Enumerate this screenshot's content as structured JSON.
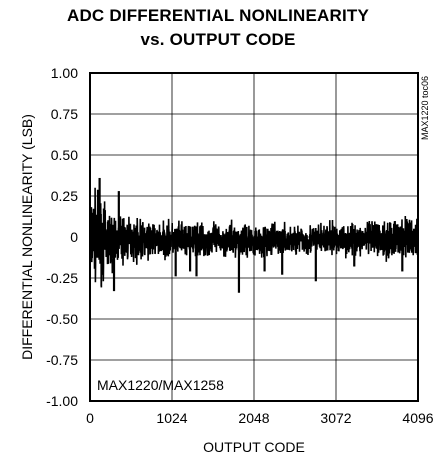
{
  "chart_data": {
    "type": "line",
    "title": "ADC DIFFERENTIAL NONLINEARITY",
    "subtitle": "vs. OUTPUT CODE",
    "xlabel": "OUTPUT CODE",
    "ylabel": "DIFFERENTIAL NONLINEARITY (LSB)",
    "xlim": [
      0,
      4096
    ],
    "ylim": [
      -1.0,
      1.0
    ],
    "x_ticks": [
      "0",
      "1024",
      "2048",
      "3072",
      "4096"
    ],
    "y_ticks": [
      "1.00",
      "0.75",
      "0.50",
      "0.25",
      "0",
      "-0.25",
      "-0.50",
      "-0.75",
      "-1.00"
    ],
    "grid": true,
    "annotation": "MAX1220/MAX1258",
    "figure_code": "MAX1220 toc06",
    "series": [
      {
        "color": "#000000",
        "envelope": {
          "x": [
            0,
            50,
            100,
            200,
            300,
            500,
            700,
            1024,
            1500,
            2048,
            2500,
            3072,
            3500,
            3800,
            4096
          ],
          "upper": [
            0.22,
            0.35,
            0.3,
            0.22,
            0.18,
            0.14,
            0.12,
            0.11,
            0.1,
            0.1,
            0.09,
            0.1,
            0.11,
            0.14,
            0.16
          ],
          "lower": [
            -0.26,
            -0.3,
            -0.33,
            -0.28,
            -0.22,
            -0.18,
            -0.16,
            -0.15,
            -0.14,
            -0.14,
            -0.13,
            -0.13,
            -0.14,
            -0.16,
            -0.17
          ]
        },
        "outliers": [
          {
            "x": 120,
            "y": 0.36
          },
          {
            "x": 300,
            "y": -0.33
          },
          {
            "x": 360,
            "y": 0.28
          },
          {
            "x": 1070,
            "y": -0.24
          },
          {
            "x": 1250,
            "y": -0.21
          },
          {
            "x": 1330,
            "y": -0.24
          },
          {
            "x": 1860,
            "y": -0.34
          },
          {
            "x": 2180,
            "y": -0.21
          },
          {
            "x": 2400,
            "y": -0.23
          },
          {
            "x": 2820,
            "y": -0.27
          },
          {
            "x": 3300,
            "y": -0.18
          },
          {
            "x": 3900,
            "y": -0.21
          }
        ]
      }
    ]
  }
}
